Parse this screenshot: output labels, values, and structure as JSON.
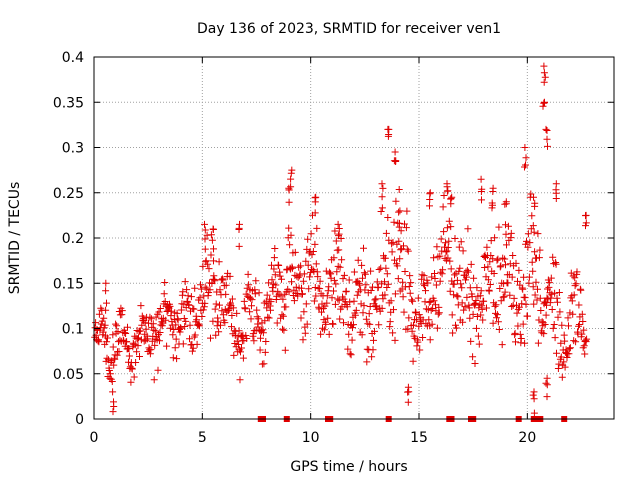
{
  "chart_data": {
    "type": "scatter",
    "title": "Day 136 of 2023, SRMTID for receiver ven1",
    "xlabel": "GPS time / hours",
    "ylabel": "SRMTID / TECUs",
    "xlim": [
      0,
      24
    ],
    "ylim": [
      0,
      0.4
    ],
    "x_ticks": [
      0,
      5,
      10,
      15,
      20
    ],
    "x_tick_labels": [
      "0",
      "5",
      "10",
      "15",
      "20"
    ],
    "y_ticks": [
      0,
      0.05,
      0.1,
      0.15,
      0.2,
      0.25,
      0.3,
      0.35,
      0.4
    ],
    "y_tick_labels": [
      "0",
      "0.05",
      "0.1",
      "0.15",
      "0.2",
      "0.25",
      "0.3",
      "0.35",
      "0.4"
    ],
    "grid": true,
    "marker": "+",
    "color": "#e00000",
    "series": [
      {
        "name": "ven1",
        "trend": {
          "x": [
            0,
            0.5,
            1,
            1.5,
            2,
            2.5,
            3,
            3.5,
            4,
            4.5,
            5,
            5.5,
            6,
            6.5,
            7,
            7.5,
            8,
            8.5,
            9,
            9.5,
            10,
            10.5,
            11,
            11.5,
            12,
            12.5,
            13,
            13.5,
            14,
            14.5,
            15,
            15.5,
            16,
            16.5,
            17,
            17.5,
            18,
            18.5,
            19,
            19.5,
            20,
            20.5,
            21,
            21.5,
            22,
            22.5,
            23
          ],
          "y": [
            0.09,
            0.09,
            0.08,
            0.08,
            0.085,
            0.09,
            0.1,
            0.105,
            0.11,
            0.11,
            0.13,
            0.14,
            0.135,
            0.1,
            0.1,
            0.12,
            0.125,
            0.14,
            0.15,
            0.13,
            0.16,
            0.13,
            0.15,
            0.14,
            0.12,
            0.14,
            0.13,
            0.16,
            0.18,
            0.15,
            0.1,
            0.12,
            0.18,
            0.17,
            0.14,
            0.12,
            0.13,
            0.17,
            0.15,
            0.13,
            0.17,
            0.15,
            0.13,
            0.1,
            0.11,
            0.12,
            0.13
          ],
          "spread": [
            0.02,
            0.02,
            0.02,
            0.02,
            0.02,
            0.02,
            0.03,
            0.03,
            0.03,
            0.03,
            0.04,
            0.04,
            0.04,
            0.03,
            0.03,
            0.03,
            0.03,
            0.04,
            0.05,
            0.03,
            0.05,
            0.03,
            0.04,
            0.04,
            0.03,
            0.04,
            0.04,
            0.05,
            0.07,
            0.05,
            0.03,
            0.04,
            0.05,
            0.05,
            0.04,
            0.04,
            0.04,
            0.05,
            0.05,
            0.04,
            0.06,
            0.05,
            0.05,
            0.03,
            0.03,
            0.04,
            0.04
          ]
        },
        "peaks": [
          {
            "x": 0.55,
            "y": 0.15
          },
          {
            "x": 5.1,
            "y": 0.215
          },
          {
            "x": 5.5,
            "y": 0.21
          },
          {
            "x": 6.7,
            "y": 0.215
          },
          {
            "x": 9.1,
            "y": 0.275
          },
          {
            "x": 9.0,
            "y": 0.255
          },
          {
            "x": 10.2,
            "y": 0.245
          },
          {
            "x": 11.3,
            "y": 0.215
          },
          {
            "x": 13.3,
            "y": 0.26
          },
          {
            "x": 13.6,
            "y": 0.32
          },
          {
            "x": 13.9,
            "y": 0.295
          },
          {
            "x": 14.1,
            "y": 0.23
          },
          {
            "x": 15.5,
            "y": 0.25
          },
          {
            "x": 16.3,
            "y": 0.26
          },
          {
            "x": 16.5,
            "y": 0.245
          },
          {
            "x": 17.9,
            "y": 0.265
          },
          {
            "x": 18.4,
            "y": 0.255
          },
          {
            "x": 19.0,
            "y": 0.24
          },
          {
            "x": 19.9,
            "y": 0.3
          },
          {
            "x": 20.3,
            "y": 0.245
          },
          {
            "x": 20.8,
            "y": 0.39
          },
          {
            "x": 20.75,
            "y": 0.35
          },
          {
            "x": 20.9,
            "y": 0.32
          },
          {
            "x": 21.3,
            "y": 0.26
          },
          {
            "x": 22.7,
            "y": 0.225
          },
          {
            "x": 20.3,
            "y": 0.03
          },
          {
            "x": 20.9,
            "y": 0.045
          },
          {
            "x": 0.9,
            "y": 0.03
          },
          {
            "x": 14.5,
            "y": 0.035
          }
        ],
        "zero_values_x": [
          7.7,
          7.8,
          8.9,
          10.8,
          10.9,
          13.6,
          16.4,
          16.5,
          17.4,
          17.5,
          19.6,
          20.3,
          20.4,
          20.5,
          20.6,
          21.7
        ]
      }
    ]
  }
}
